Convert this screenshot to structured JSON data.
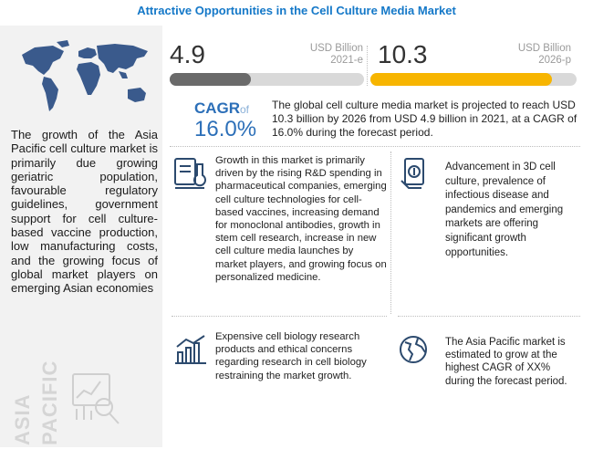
{
  "title": "Attractive Opportunities in the Cell Culture Media Market",
  "left_panel": {
    "description": "The growth of the Asia Pacific cell culture market is primarily due growing geriatric population, favourable regulatory guidelines, government support for cell culture-based vaccine production, low manufacturing costs, and the growing focus of global market players on emerging Asian economies",
    "region_line1": "ASIA",
    "region_line2": "PACIFIC",
    "map_icon": "world-map-icon",
    "illustration_icon": "growth-analysis-icon"
  },
  "market_size": {
    "start_value": "4.9",
    "start_unit": "USD Billion",
    "start_year": "2021-e",
    "end_value": "10.3",
    "end_unit": "USD Billion",
    "end_year": "2026-p",
    "start_fill": 0.42,
    "end_fill": 0.88,
    "start_color": "#6a6a6a",
    "end_color": "#f7b500"
  },
  "cagr": {
    "label": "CAGR",
    "of": "of",
    "value": "16.0%",
    "summary": "The global cell culture media market is projected to reach USD 10.3 billion by 2026 from USD 4.9 billion in 2021, at a CAGR of 16.0% during the forecast period."
  },
  "cards": {
    "drivers": {
      "icon": "lab-microscope-icon",
      "text": "Growth in this market is primarily driven by the rising R&D spending in pharmaceutical companies, emerging cell culture technologies for cell-based vaccines, increasing demand for monoclonal antibodies, growth in stem cell research, increase in new cell culture media launches by market players, and growing focus on personalized medicine."
    },
    "opportunities": {
      "icon": "money-icon",
      "text": "Advancement in 3D cell culture, prevalence of infectious disease and pandemics and emerging markets are offering significant growth opportunities."
    },
    "restraints": {
      "icon": "declining-chart-icon",
      "text": "Expensive cell biology research products and ethical concerns regarding research in cell biology restraining the market growth."
    },
    "regional": {
      "icon": "globe-icon",
      "text": "The Asia Pacific market is estimated to grow at the highest CAGR of XX% during the forecast period."
    }
  },
  "colors": {
    "accent": "#1478c8",
    "cagr": "#2c6fb8",
    "panel": "#f2f2f2"
  }
}
